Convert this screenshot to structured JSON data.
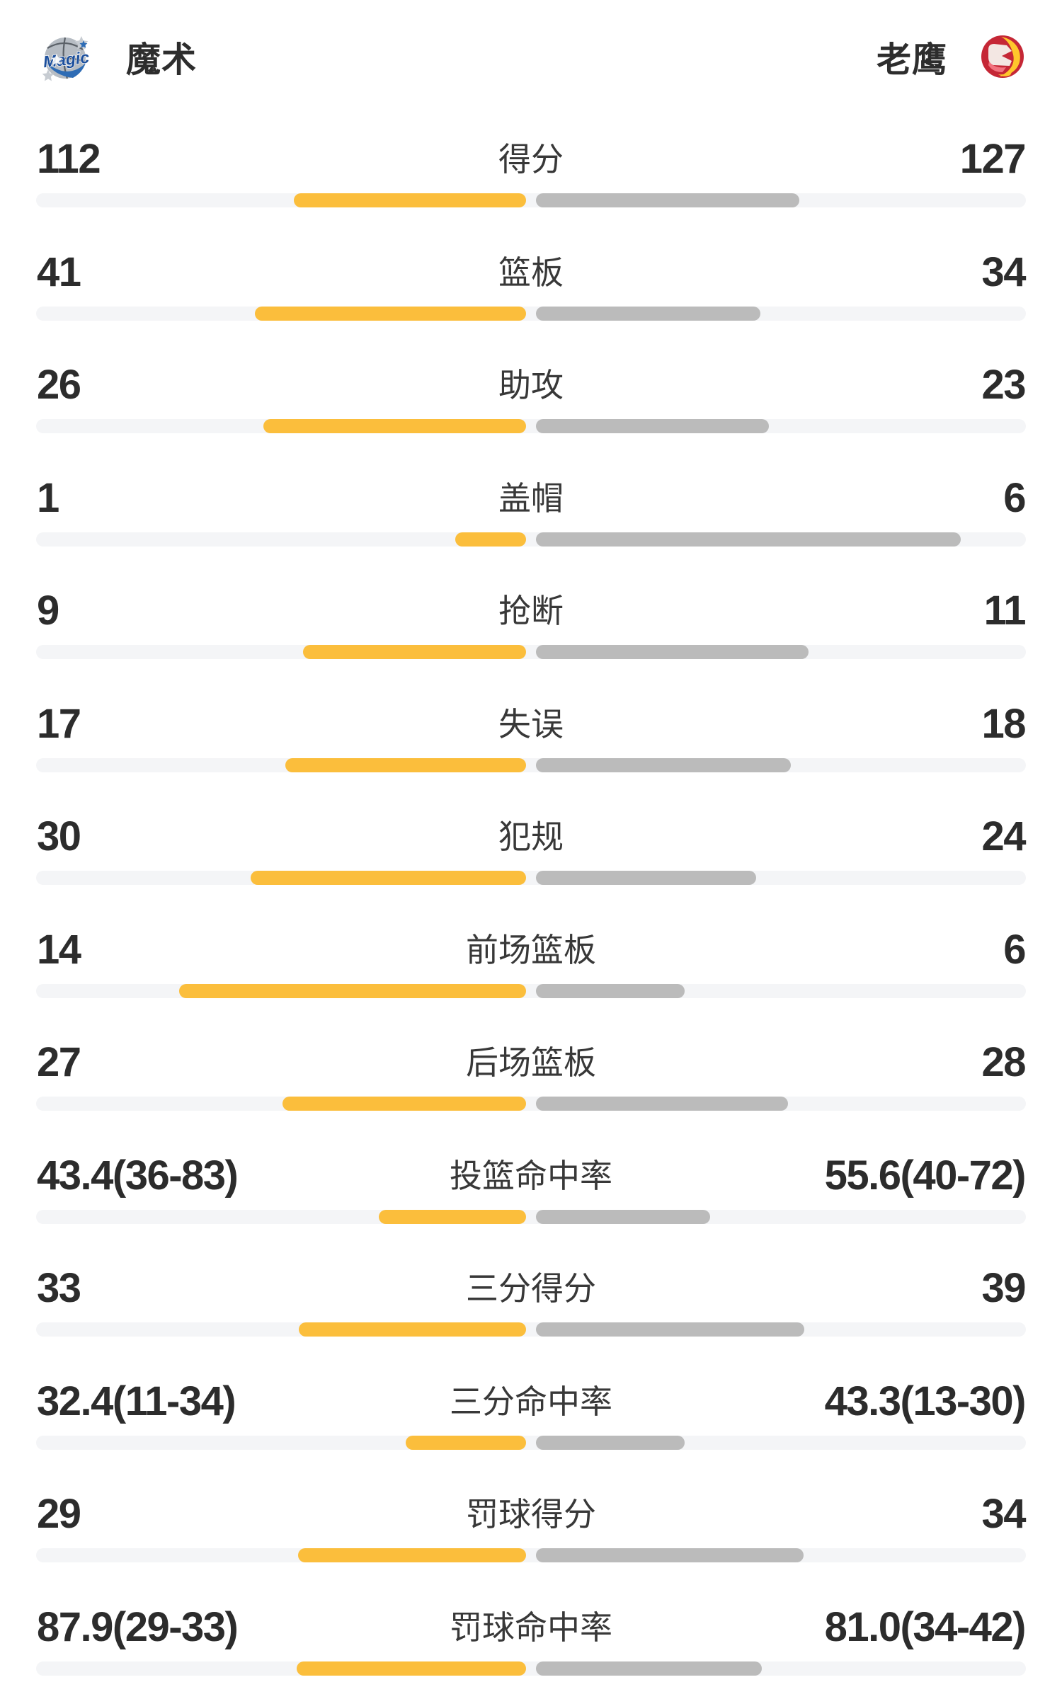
{
  "header": {
    "home": {
      "name": "魔术",
      "logo": "magic-logo"
    },
    "away": {
      "name": "老鹰",
      "logo": "hawks-logo"
    }
  },
  "colors": {
    "home_bar": "#FBBE3C",
    "away_bar": "#BBBBBB",
    "bar_track": "#F4F5F7",
    "text": "#2c2c2c",
    "hawks_red": "#C52736",
    "magic_blue": "#2E6CB5"
  },
  "chart_data": {
    "type": "bar",
    "note": "center-anchored comparison bars, home(yellow) grows left, away(gray) grows right, bar px lengths of 1398px track",
    "home_team": "魔术",
    "away_team": "老鹰"
  },
  "stats": [
    {
      "label": "得分",
      "home": "112",
      "away": "127",
      "home_bar": 328,
      "away_bar": 372
    },
    {
      "label": "篮板",
      "home": "41",
      "away": "34",
      "home_bar": 383,
      "away_bar": 317
    },
    {
      "label": "助攻",
      "home": "26",
      "away": "23",
      "home_bar": 371,
      "away_bar": 329
    },
    {
      "label": "盖帽",
      "home": "1",
      "away": "6",
      "home_bar": 100,
      "away_bar": 600
    },
    {
      "label": "抢断",
      "home": "9",
      "away": "11",
      "home_bar": 315,
      "away_bar": 385
    },
    {
      "label": "失误",
      "home": "17",
      "away": "18",
      "home_bar": 340,
      "away_bar": 360
    },
    {
      "label": "犯规",
      "home": "30",
      "away": "24",
      "home_bar": 389,
      "away_bar": 311
    },
    {
      "label": "前场篮板",
      "home": "14",
      "away": "6",
      "home_bar": 490,
      "away_bar": 210
    },
    {
      "label": "后场篮板",
      "home": "27",
      "away": "28",
      "home_bar": 344,
      "away_bar": 356
    },
    {
      "label": "投篮命中率",
      "home": "43.4(36-83)",
      "away": "55.6(40-72)",
      "home_bar": 208,
      "away_bar": 246
    },
    {
      "label": "三分得分",
      "home": "33",
      "away": "39",
      "home_bar": 321,
      "away_bar": 379
    },
    {
      "label": "三分命中率",
      "home": "32.4(11-34)",
      "away": "43.3(13-30)",
      "home_bar": 170,
      "away_bar": 210
    },
    {
      "label": "罚球得分",
      "home": "29",
      "away": "34",
      "home_bar": 322,
      "away_bar": 378
    },
    {
      "label": "罚球命中率",
      "home": "87.9(29-33)",
      "away": "81.0(34-42)",
      "home_bar": 324,
      "away_bar": 319
    }
  ]
}
